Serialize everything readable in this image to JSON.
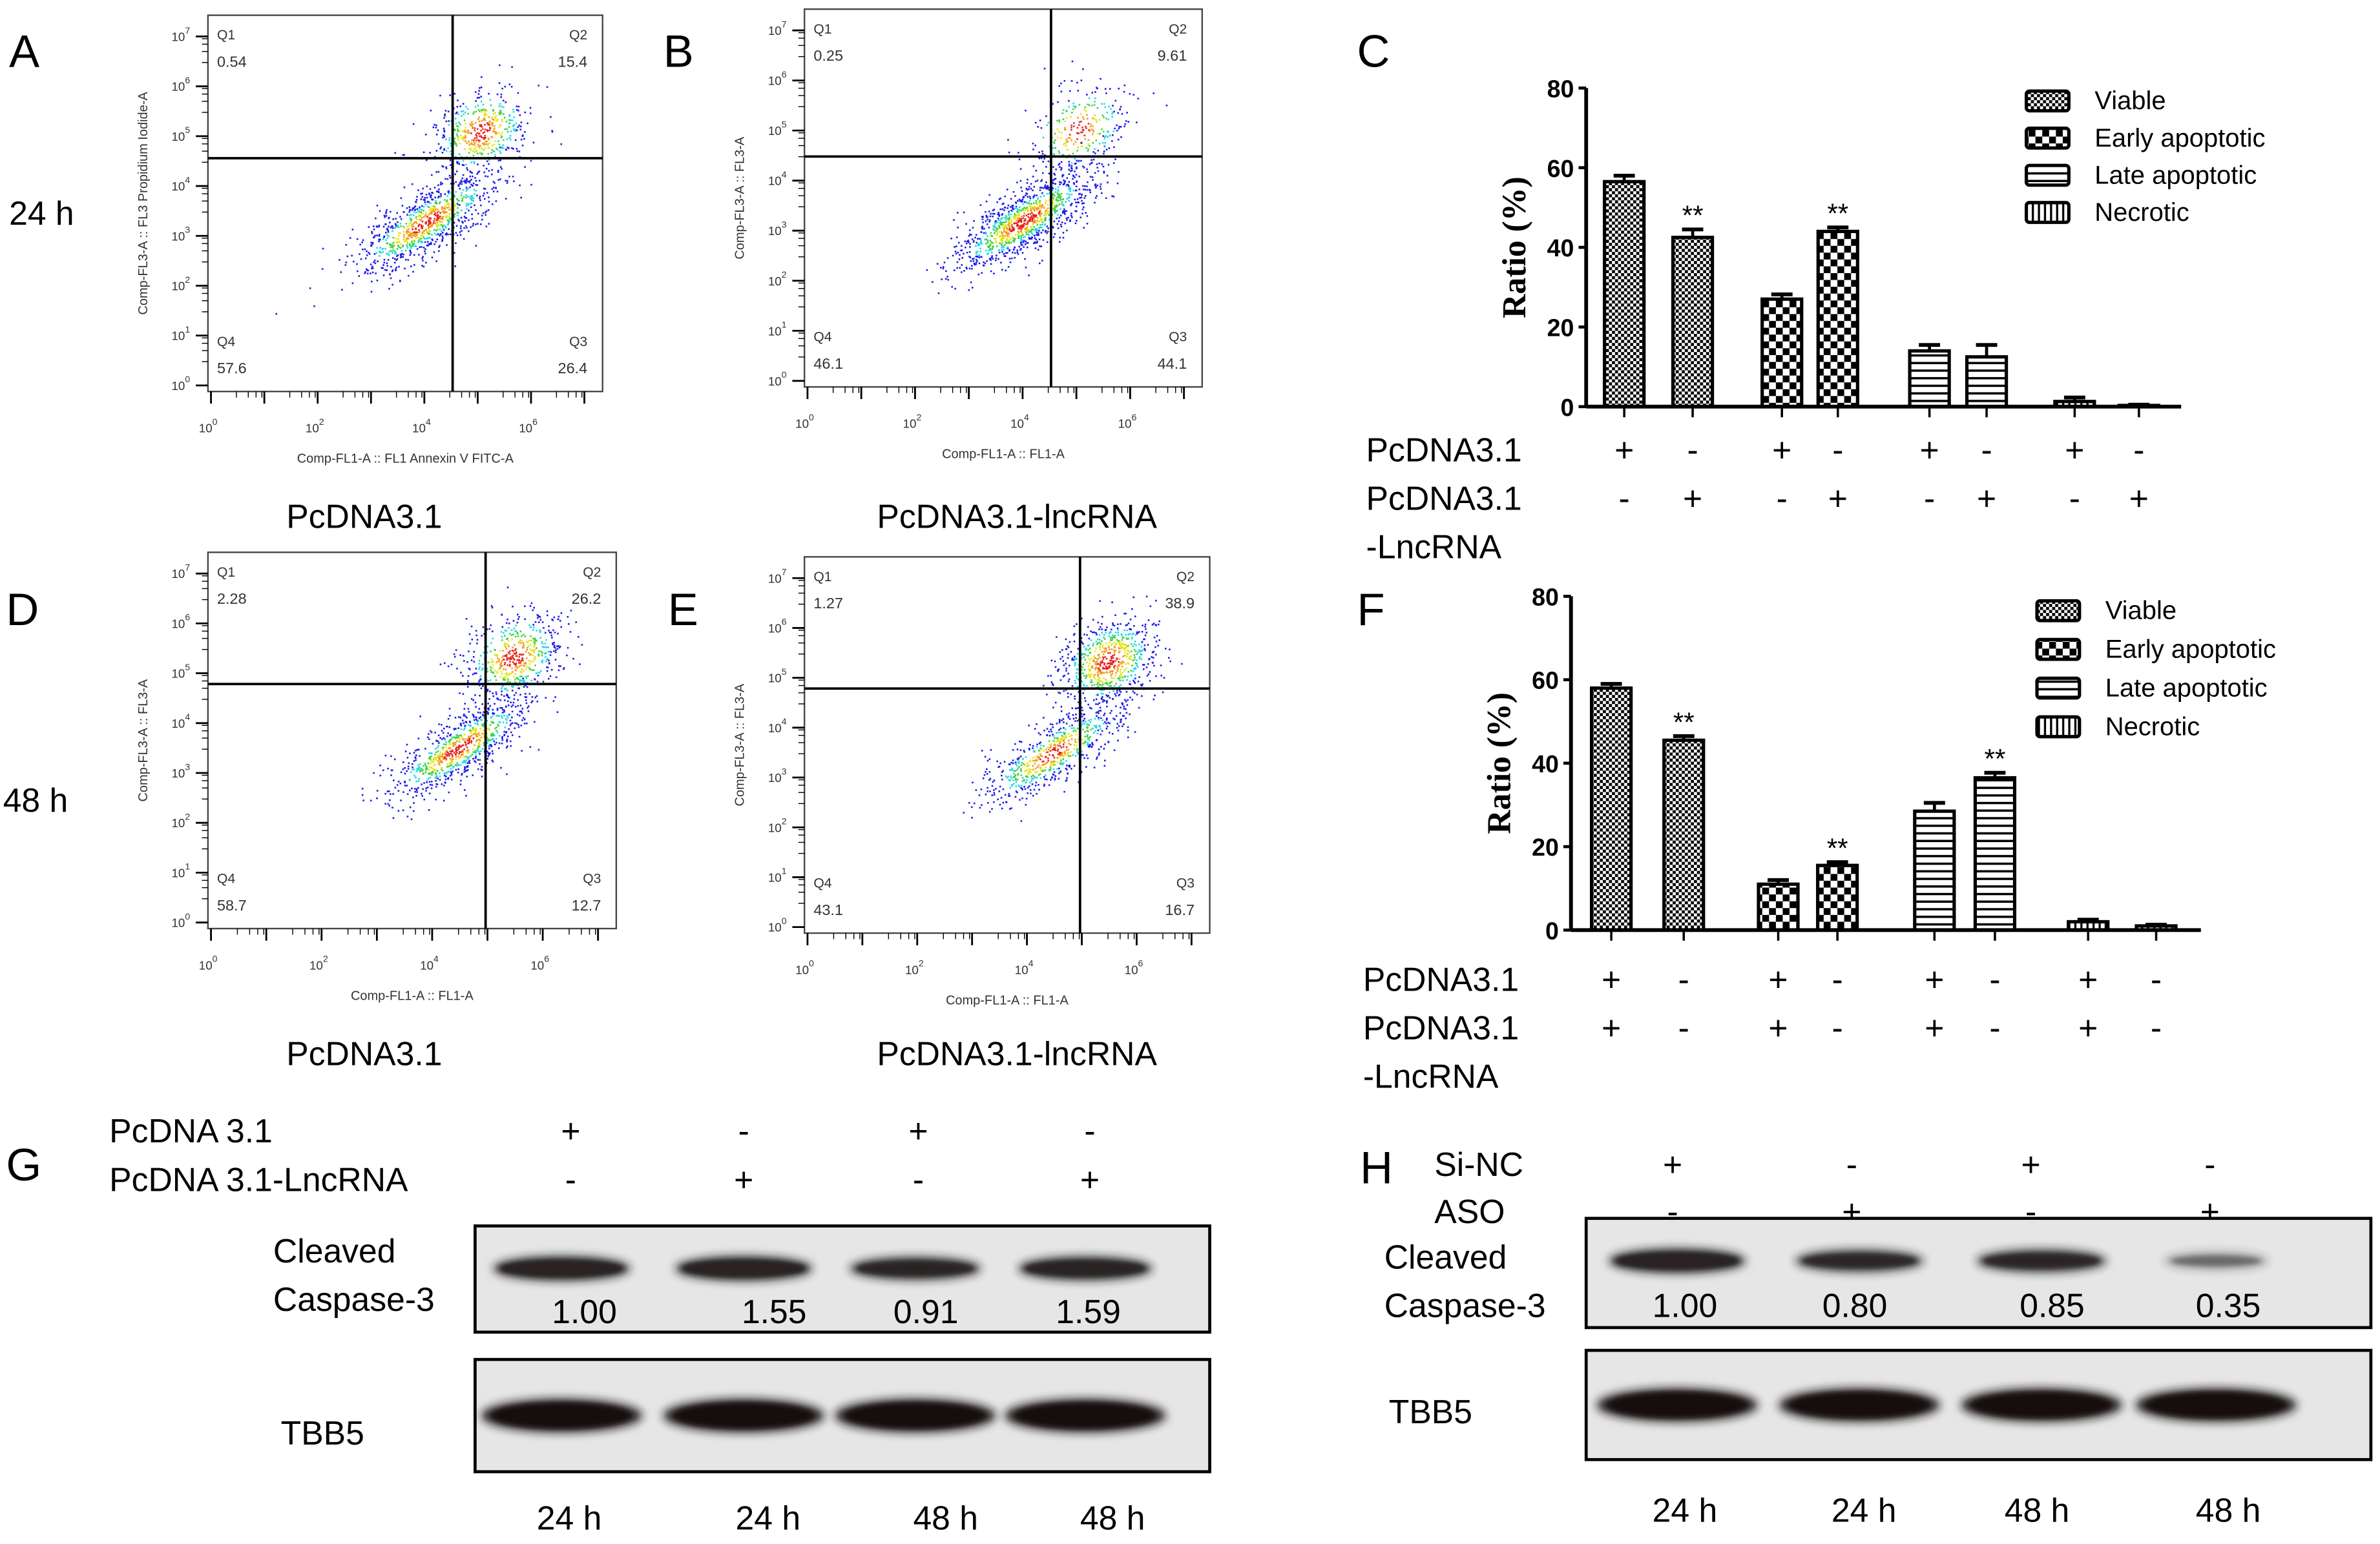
{
  "panels": {
    "A": "A",
    "B": "B",
    "C": "C",
    "D": "D",
    "E": "E",
    "F": "F",
    "G": "G",
    "H": "H"
  },
  "time_labels": {
    "row1": "24 h",
    "row2": "48 h"
  },
  "flow_plots": [
    {
      "id": "A",
      "caption": "PcDNA3.1",
      "y_axis_label": "Comp-FL3-A :: FL3 Propidium Iodide-A",
      "x_axis_label": "Comp-FL1-A :: FL1 Annexin V FITC-A",
      "quadrants": {
        "Q1": "0.54",
        "Q2": "15.4",
        "Q3": "26.4",
        "Q4": "57.6"
      }
    },
    {
      "id": "B",
      "caption": "PcDNA3.1-lncRNA",
      "y_axis_label": "Comp-FL3-A :: FL3-A",
      "x_axis_label": "Comp-FL1-A :: FL1-A",
      "quadrants": {
        "Q1": "0.25",
        "Q2": "9.61",
        "Q3": "44.1",
        "Q4": "46.1"
      }
    },
    {
      "id": "D",
      "caption": "PcDNA3.1",
      "y_axis_label": "Comp-FL3-A :: FL3-A",
      "x_axis_label": "Comp-FL1-A :: FL1-A",
      "quadrants": {
        "Q1": "2.28",
        "Q2": "26.2",
        "Q3": "12.7",
        "Q4": "58.7"
      }
    },
    {
      "id": "E",
      "caption": "PcDNA3.1-lncRNA",
      "y_axis_label": "Comp-FL3-A :: FL3-A",
      "x_axis_label": "Comp-FL1-A :: FL1-A",
      "quadrants": {
        "Q1": "1.27",
        "Q2": "38.9",
        "Q3": "16.7",
        "Q4": "43.1"
      }
    }
  ],
  "flow_axes": {
    "base": "10",
    "y_tick_exponents": [
      "0",
      "1",
      "2",
      "3",
      "4",
      "5",
      "6",
      "7"
    ],
    "x_tick_exponents": [
      "0",
      "2",
      "4",
      "6"
    ]
  },
  "chart_data": [
    {
      "panel": "C",
      "type": "bar",
      "ylabel": "Ratio (%)",
      "ylim": [
        0,
        80
      ],
      "yticks": [
        0,
        20,
        40,
        60,
        80
      ],
      "grid": false,
      "legend_position": "top-right",
      "legend": [
        "Viable",
        "Early apoptotic",
        "Late apoptotic",
        "Necrotic"
      ],
      "bars": [
        {
          "series": "Viable",
          "value": 56.5,
          "error": 1.5,
          "sig": ""
        },
        {
          "series": "Viable",
          "value": 42.5,
          "error": 2.0,
          "sig": "**"
        },
        {
          "series": "Early apoptotic",
          "value": 27,
          "error": 1.2,
          "sig": ""
        },
        {
          "series": "Early apoptotic",
          "value": 44,
          "error": 1.0,
          "sig": "**"
        },
        {
          "series": "Late apoptotic",
          "value": 14,
          "error": 1.5,
          "sig": ""
        },
        {
          "series": "Late apoptotic",
          "value": 12.5,
          "error": 3.0,
          "sig": ""
        },
        {
          "series": "Necrotic",
          "value": 1.3,
          "error": 1.0,
          "sig": ""
        },
        {
          "series": "Necrotic",
          "value": 0.3,
          "error": 0.2,
          "sig": ""
        }
      ],
      "row_labels": [
        "PcDNA3.1",
        "PcDNA3.1",
        "-LncRNA"
      ],
      "row1": [
        "+",
        "-",
        "+",
        "-",
        "+",
        "-",
        "+",
        "-"
      ],
      "row2": [
        "-",
        "+",
        "-",
        "+",
        "-",
        "+",
        "-",
        "+"
      ]
    },
    {
      "panel": "F",
      "type": "bar",
      "ylabel": "Ratio (%)",
      "ylim": [
        0,
        80
      ],
      "yticks": [
        0,
        20,
        40,
        60,
        80
      ],
      "grid": false,
      "legend_position": "top-right",
      "legend": [
        "Viable",
        "Early apoptotic",
        "Late apoptotic",
        "Necrotic"
      ],
      "bars": [
        {
          "series": "Viable",
          "value": 58,
          "error": 1.0,
          "sig": ""
        },
        {
          "series": "Viable",
          "value": 45.5,
          "error": 1.0,
          "sig": "**"
        },
        {
          "series": "Early apoptotic",
          "value": 11,
          "error": 1.0,
          "sig": ""
        },
        {
          "series": "Early apoptotic",
          "value": 15.5,
          "error": 0.8,
          "sig": "**"
        },
        {
          "series": "Late apoptotic",
          "value": 28.5,
          "error": 2.0,
          "sig": ""
        },
        {
          "series": "Late apoptotic",
          "value": 36.5,
          "error": 1.2,
          "sig": "**"
        },
        {
          "series": "Necrotic",
          "value": 2,
          "error": 0.5,
          "sig": ""
        },
        {
          "series": "Necrotic",
          "value": 1,
          "error": 0.3,
          "sig": ""
        }
      ],
      "row_labels": [
        "PcDNA3.1",
        "PcDNA3.1",
        "-LncRNA"
      ],
      "row1": [
        "+",
        "-",
        "+",
        "-",
        "+",
        "-",
        "+",
        "-"
      ],
      "row2": [
        "+",
        "-",
        "+",
        "-",
        "+",
        "-",
        "+",
        "-"
      ]
    }
  ],
  "western_G": {
    "row_labels": [
      "PcDNA 3.1",
      "PcDNA 3.1-LncRNA"
    ],
    "row1": [
      "+",
      "-",
      "+",
      "-"
    ],
    "row2": [
      "-",
      "+",
      "-",
      "+"
    ],
    "target_label": [
      "Cleaved",
      "Caspase-3"
    ],
    "target_values": [
      "1.00",
      "1.55",
      "0.91",
      "1.59"
    ],
    "target_intensity": [
      1.0,
      1.0,
      0.9,
      0.95
    ],
    "loading_label": "TBB5",
    "times": [
      "24 h",
      "24 h",
      "48 h",
      "48 h"
    ]
  },
  "western_H": {
    "row_labels": [
      "Si-NC",
      "ASO"
    ],
    "row1": [
      "+",
      "-",
      "+",
      "-"
    ],
    "row2": [
      "-",
      "+",
      "-",
      "+"
    ],
    "target_label": [
      "Cleaved",
      "Caspase-3"
    ],
    "target_values": [
      "1.00",
      "0.80",
      "0.85",
      "0.35"
    ],
    "target_intensity": [
      1.0,
      0.85,
      0.88,
      0.4
    ],
    "loading_label": "TBB5",
    "times": [
      "24 h",
      "24 h",
      "48 h",
      "48 h"
    ]
  }
}
